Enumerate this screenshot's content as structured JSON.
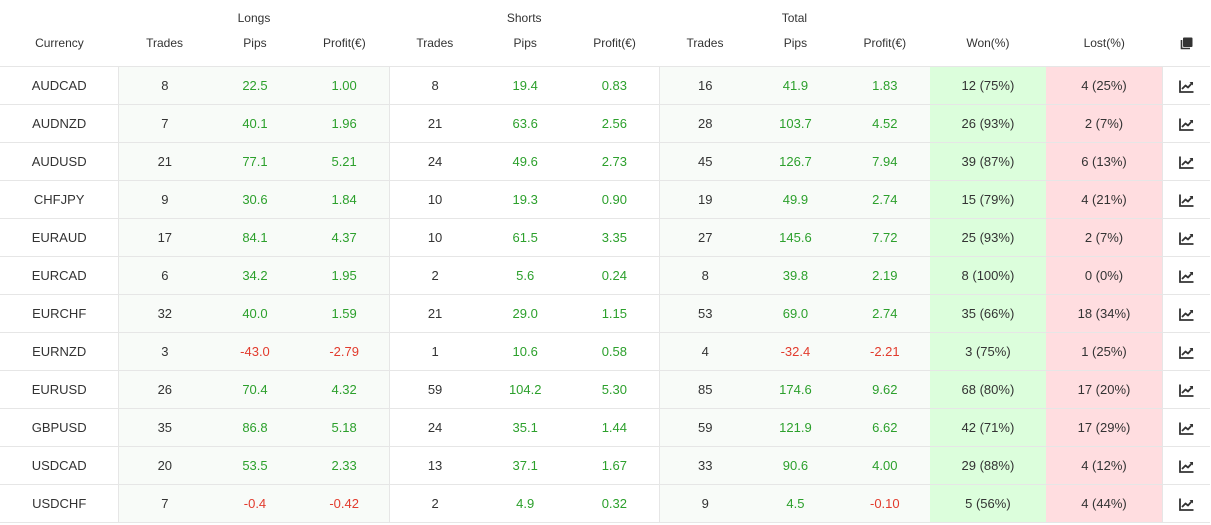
{
  "header": {
    "groups": {
      "longs": "Longs",
      "shorts": "Shorts",
      "total": "Total"
    },
    "columns": {
      "currency": "Currency",
      "longs_trades": "Trades",
      "longs_pips": "Pips",
      "longs_profit": "Profit(€)",
      "shorts_trades": "Trades",
      "shorts_pips": "Pips",
      "shorts_profit": "Profit(€)",
      "total_trades": "Trades",
      "total_pips": "Pips",
      "total_profit": "Profit(€)",
      "won": "Won(%)",
      "lost": "Lost(%)"
    },
    "copy_icon": "copy-icon"
  },
  "colors": {
    "positive": "#2ca02c",
    "negative": "#e23b2d",
    "won_bg": "#dcfedc",
    "lost_bg": "#ffdde0"
  },
  "row_icon": "chart-line-icon",
  "rows": [
    {
      "currency": "AUDCAD",
      "l_trades": "8",
      "l_pips": "22.5",
      "l_profit": "1.00",
      "s_trades": "8",
      "s_pips": "19.4",
      "s_profit": "0.83",
      "t_trades": "16",
      "t_pips": "41.9",
      "t_profit": "1.83",
      "won": "12 (75%)",
      "lost": "4 (25%)"
    },
    {
      "currency": "AUDNZD",
      "l_trades": "7",
      "l_pips": "40.1",
      "l_profit": "1.96",
      "s_trades": "21",
      "s_pips": "63.6",
      "s_profit": "2.56",
      "t_trades": "28",
      "t_pips": "103.7",
      "t_profit": "4.52",
      "won": "26 (93%)",
      "lost": "2 (7%)"
    },
    {
      "currency": "AUDUSD",
      "l_trades": "21",
      "l_pips": "77.1",
      "l_profit": "5.21",
      "s_trades": "24",
      "s_pips": "49.6",
      "s_profit": "2.73",
      "t_trades": "45",
      "t_pips": "126.7",
      "t_profit": "7.94",
      "won": "39 (87%)",
      "lost": "6 (13%)"
    },
    {
      "currency": "CHFJPY",
      "l_trades": "9",
      "l_pips": "30.6",
      "l_profit": "1.84",
      "s_trades": "10",
      "s_pips": "19.3",
      "s_profit": "0.90",
      "t_trades": "19",
      "t_pips": "49.9",
      "t_profit": "2.74",
      "won": "15 (79%)",
      "lost": "4 (21%)"
    },
    {
      "currency": "EURAUD",
      "l_trades": "17",
      "l_pips": "84.1",
      "l_profit": "4.37",
      "s_trades": "10",
      "s_pips": "61.5",
      "s_profit": "3.35",
      "t_trades": "27",
      "t_pips": "145.6",
      "t_profit": "7.72",
      "won": "25 (93%)",
      "lost": "2 (7%)"
    },
    {
      "currency": "EURCAD",
      "l_trades": "6",
      "l_pips": "34.2",
      "l_profit": "1.95",
      "s_trades": "2",
      "s_pips": "5.6",
      "s_profit": "0.24",
      "t_trades": "8",
      "t_pips": "39.8",
      "t_profit": "2.19",
      "won": "8 (100%)",
      "lost": "0 (0%)"
    },
    {
      "currency": "EURCHF",
      "l_trades": "32",
      "l_pips": "40.0",
      "l_profit": "1.59",
      "s_trades": "21",
      "s_pips": "29.0",
      "s_profit": "1.15",
      "t_trades": "53",
      "t_pips": "69.0",
      "t_profit": "2.74",
      "won": "35 (66%)",
      "lost": "18 (34%)"
    },
    {
      "currency": "EURNZD",
      "l_trades": "3",
      "l_pips": "-43.0",
      "l_profit": "-2.79",
      "s_trades": "1",
      "s_pips": "10.6",
      "s_profit": "0.58",
      "t_trades": "4",
      "t_pips": "-32.4",
      "t_profit": "-2.21",
      "won": "3 (75%)",
      "lost": "1 (25%)"
    },
    {
      "currency": "EURUSD",
      "l_trades": "26",
      "l_pips": "70.4",
      "l_profit": "4.32",
      "s_trades": "59",
      "s_pips": "104.2",
      "s_profit": "5.30",
      "t_trades": "85",
      "t_pips": "174.6",
      "t_profit": "9.62",
      "won": "68 (80%)",
      "lost": "17 (20%)"
    },
    {
      "currency": "GBPUSD",
      "l_trades": "35",
      "l_pips": "86.8",
      "l_profit": "5.18",
      "s_trades": "24",
      "s_pips": "35.1",
      "s_profit": "1.44",
      "t_trades": "59",
      "t_pips": "121.9",
      "t_profit": "6.62",
      "won": "42 (71%)",
      "lost": "17 (29%)"
    },
    {
      "currency": "USDCAD",
      "l_trades": "20",
      "l_pips": "53.5",
      "l_profit": "2.33",
      "s_trades": "13",
      "s_pips": "37.1",
      "s_profit": "1.67",
      "t_trades": "33",
      "t_pips": "90.6",
      "t_profit": "4.00",
      "won": "29 (88%)",
      "lost": "4 (12%)"
    },
    {
      "currency": "USDCHF",
      "l_trades": "7",
      "l_pips": "-0.4",
      "l_profit": "-0.42",
      "s_trades": "2",
      "s_pips": "4.9",
      "s_profit": "0.32",
      "t_trades": "9",
      "t_pips": "4.5",
      "t_profit": "-0.10",
      "won": "5 (56%)",
      "lost": "4 (44%)"
    }
  ]
}
